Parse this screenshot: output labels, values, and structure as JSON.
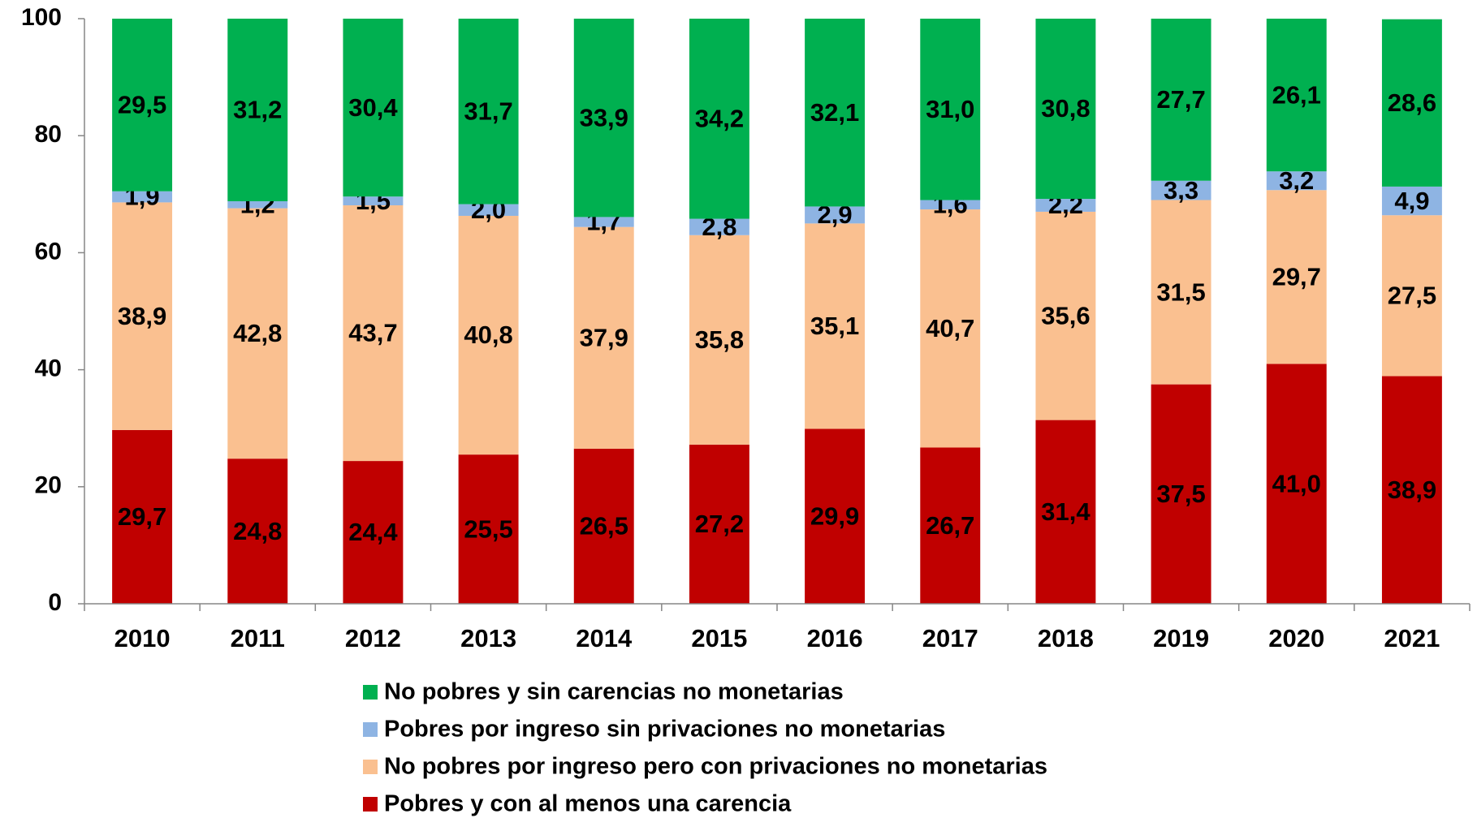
{
  "chart_data": {
    "type": "stacked_bar",
    "categories": [
      "2010",
      "2011",
      "2012",
      "2013",
      "2014",
      "2015",
      "2016",
      "2017",
      "2018",
      "2019",
      "2020",
      "2021"
    ],
    "series": [
      {
        "name": "Pobres y con al menos una carencia",
        "color": "#c00000",
        "values": [
          29.7,
          24.8,
          24.4,
          25.5,
          26.5,
          27.2,
          29.9,
          26.7,
          31.4,
          37.5,
          41.0,
          38.9
        ],
        "value_labels": [
          "29,7",
          "24,8",
          "24,4",
          "25,5",
          "26,5",
          "27,2",
          "29,9",
          "26,7",
          "31,4",
          "37,5",
          "41,0",
          "38,9"
        ]
      },
      {
        "name": "No pobres por ingreso pero con privaciones no monetarias",
        "color": "#fac090",
        "values": [
          38.9,
          42.8,
          43.7,
          40.8,
          37.9,
          35.8,
          35.1,
          40.7,
          35.6,
          31.5,
          29.7,
          27.5
        ],
        "value_labels": [
          "38,9",
          "42,8",
          "43,7",
          "40,8",
          "37,9",
          "35,8",
          "35,1",
          "40,7",
          "35,6",
          "31,5",
          "29,7",
          "27,5"
        ]
      },
      {
        "name": "Pobres por ingreso sin privaciones no monetarias",
        "color": "#8eb4e3",
        "values": [
          1.9,
          1.2,
          1.5,
          2.0,
          1.7,
          2.8,
          2.9,
          1.6,
          2.2,
          3.3,
          3.2,
          4.9
        ],
        "value_labels": [
          "1,9",
          "1,2",
          "1,5",
          "2,0",
          "1,7",
          "2,8",
          "2,9",
          "1,6",
          "2,2",
          "3,3",
          "3,2",
          "4,9"
        ]
      },
      {
        "name": "No pobres y sin carencias no monetarias",
        "color": "#00b050",
        "values": [
          29.5,
          31.2,
          30.4,
          31.7,
          33.9,
          34.2,
          32.1,
          31.0,
          30.8,
          27.7,
          26.1,
          28.6
        ],
        "value_labels": [
          "29,5",
          "31,2",
          "30,4",
          "31,7",
          "33,9",
          "34,2",
          "32,1",
          "31,0",
          "30,8",
          "27,7",
          "26,1",
          "28,6"
        ]
      }
    ],
    "ylim": [
      0,
      100
    ],
    "yticks": [
      0,
      20,
      40,
      60,
      80,
      100
    ],
    "legend": "bottom"
  }
}
